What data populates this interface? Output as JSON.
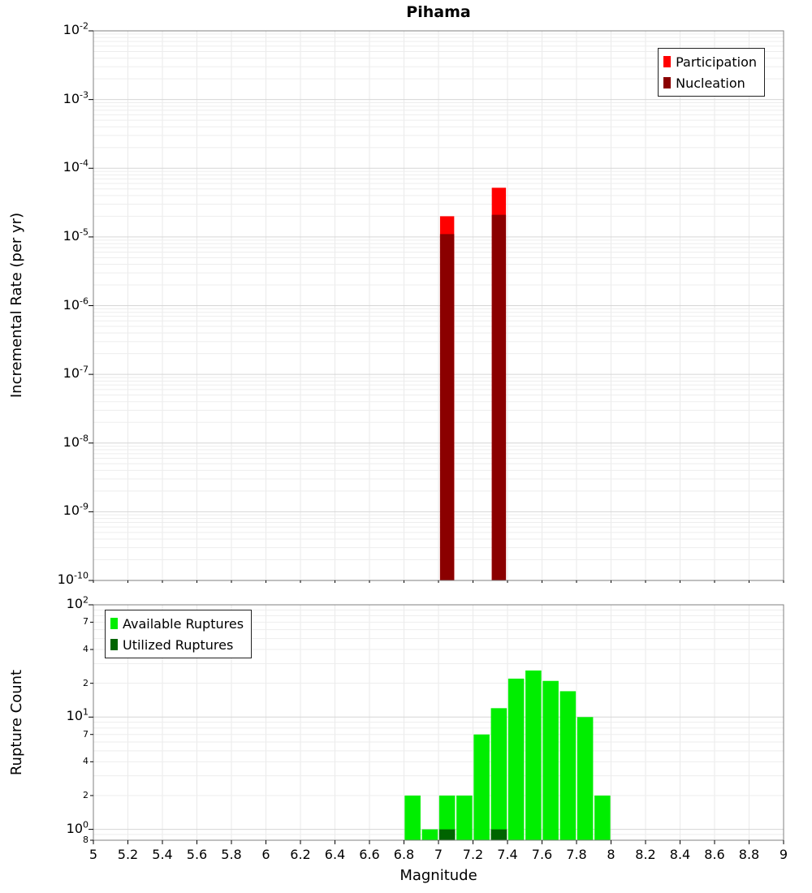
{
  "figure": {
    "background": "#FFFFFF"
  },
  "chart_data": [
    {
      "type": "bar",
      "title": "Pihama",
      "xlabel": "",
      "ylabel": "Incremental Rate (per yr)",
      "grid": true,
      "bin_width": 0.1,
      "x_axis": {
        "min": 5,
        "max": 9,
        "tick_step": 0.2,
        "labels_visible": false,
        "tick_labels": [
          "5",
          "5.2",
          "5.4",
          "5.6",
          "5.8",
          "6",
          "6.2",
          "6.4",
          "6.6",
          "6.8",
          "7",
          "7.2",
          "7.4",
          "7.6",
          "7.8",
          "8",
          "8.2",
          "8.4",
          "8.6",
          "8.8",
          "9"
        ]
      },
      "y_axis": {
        "scale": "log",
        "min": 1e-10,
        "max": 0.01,
        "ticks": [
          {
            "value": 0.01,
            "label": "10^-2",
            "major": true
          },
          {
            "value": 0.001,
            "label": "10^-3",
            "major": true
          },
          {
            "value": 0.0001,
            "label": "10^-4",
            "major": true
          },
          {
            "value": 1e-05,
            "label": "10^-5",
            "major": true
          },
          {
            "value": 1e-06,
            "label": "10^-6",
            "major": true
          },
          {
            "value": 1e-07,
            "label": "10^-7",
            "major": true
          },
          {
            "value": 1e-08,
            "label": "10^-8",
            "major": true
          },
          {
            "value": 1e-09,
            "label": "10^-9",
            "major": true
          },
          {
            "value": 1e-10,
            "label": "10^-10",
            "major": true
          }
        ]
      },
      "legend": {
        "position": "top-right",
        "items": [
          {
            "label": "Participation",
            "color": "#FF0000"
          },
          {
            "label": "Nucleation",
            "color": "#8B0000"
          }
        ]
      },
      "series": [
        {
          "name": "Participation",
          "color": "#FF0000",
          "points": [
            {
              "x": 7.05,
              "y": 2e-05
            },
            {
              "x": 7.35,
              "y": 5.2e-05
            }
          ]
        },
        {
          "name": "Nucleation",
          "color": "#8B0000",
          "points": [
            {
              "x": 7.05,
              "y": 1.1e-05
            },
            {
              "x": 7.35,
              "y": 2.1e-05
            }
          ]
        }
      ]
    },
    {
      "type": "bar",
      "title": "",
      "xlabel": "Magnitude",
      "ylabel": "Rupture Count",
      "grid": true,
      "bin_width": 0.1,
      "x_axis": {
        "min": 5,
        "max": 9,
        "tick_step": 0.2,
        "labels_visible": true,
        "tick_labels": [
          "5",
          "5.2",
          "5.4",
          "5.6",
          "5.8",
          "6",
          "6.2",
          "6.4",
          "6.6",
          "6.8",
          "7",
          "7.2",
          "7.4",
          "7.6",
          "7.8",
          "8",
          "8.2",
          "8.4",
          "8.6",
          "8.8",
          "9"
        ]
      },
      "y_axis": {
        "scale": "log",
        "min": 0.8,
        "max": 100,
        "ticks": [
          {
            "value": 100,
            "label": "10^2",
            "major": true
          },
          {
            "value": 70,
            "label": "7",
            "major": false
          },
          {
            "value": 40,
            "label": "4",
            "major": false
          },
          {
            "value": 20,
            "label": "2",
            "major": false
          },
          {
            "value": 10,
            "label": "10^1",
            "major": true
          },
          {
            "value": 7,
            "label": "7",
            "major": false
          },
          {
            "value": 4,
            "label": "4",
            "major": false
          },
          {
            "value": 2,
            "label": "2",
            "major": false
          },
          {
            "value": 1,
            "label": "10^0",
            "major": true
          },
          {
            "value": 0.8,
            "label": "8",
            "major": false
          }
        ]
      },
      "legend": {
        "position": "top-left",
        "items": [
          {
            "label": "Available Ruptures",
            "color": "#00EE00"
          },
          {
            "label": "Utilized Ruptures",
            "color": "#006400"
          }
        ]
      },
      "series": [
        {
          "name": "Available Ruptures",
          "color": "#00EE00",
          "points": [
            {
              "x": 6.85,
              "y": 2
            },
            {
              "x": 6.95,
              "y": 1
            },
            {
              "x": 7.05,
              "y": 2
            },
            {
              "x": 7.15,
              "y": 2
            },
            {
              "x": 7.25,
              "y": 7
            },
            {
              "x": 7.35,
              "y": 12
            },
            {
              "x": 7.45,
              "y": 22
            },
            {
              "x": 7.55,
              "y": 26
            },
            {
              "x": 7.65,
              "y": 21
            },
            {
              "x": 7.75,
              "y": 17
            },
            {
              "x": 7.85,
              "y": 10
            },
            {
              "x": 7.95,
              "y": 2
            }
          ]
        },
        {
          "name": "Utilized Ruptures",
          "color": "#006400",
          "points": [
            {
              "x": 7.05,
              "y": 1
            },
            {
              "x": 7.35,
              "y": 1
            }
          ]
        }
      ]
    }
  ]
}
